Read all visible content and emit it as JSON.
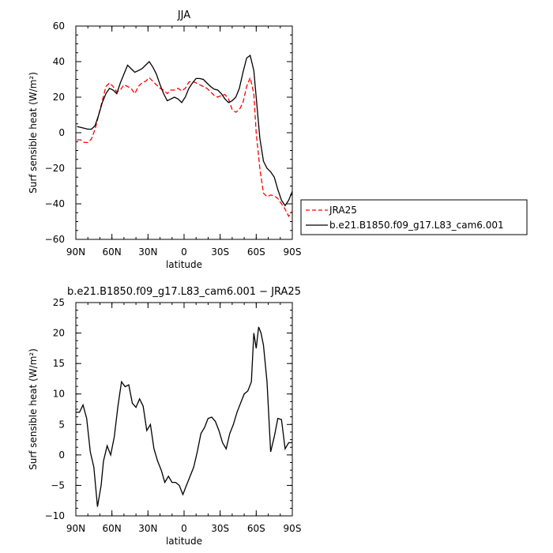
{
  "chart_data": [
    {
      "type": "line",
      "title": "JJA",
      "xlabel": "latitude",
      "ylabel": "Surf sensible heat (W/m²)",
      "xlim": [
        90,
        -90
      ],
      "ylim": [
        -60,
        60
      ],
      "x_ticks": [
        90,
        60,
        30,
        0,
        -30,
        -60,
        -90
      ],
      "x_tick_labels": [
        "90N",
        "60N",
        "30N",
        "0",
        "30S",
        "60S",
        "90S"
      ],
      "y_ticks": [
        -60,
        -40,
        -20,
        0,
        20,
        40,
        60
      ],
      "legend_position": "right",
      "series": [
        {
          "name": "JRA25",
          "color": "#ff0000",
          "dash": "dashed",
          "x": [
            89,
            86,
            83,
            80,
            77,
            74,
            71,
            68,
            65,
            62,
            59,
            56,
            53,
            50,
            47,
            44,
            41,
            38,
            35,
            32,
            29,
            26,
            23,
            20,
            17,
            14,
            11,
            8,
            5,
            2,
            -1,
            -4,
            -7,
            -10,
            -13,
            -16,
            -19,
            -22,
            -25,
            -28,
            -31,
            -34,
            -37,
            -40,
            -43,
            -46,
            -49,
            -52,
            -55,
            -58,
            -60,
            -63,
            -66,
            -69,
            -72,
            -75,
            -78,
            -81,
            -84,
            -87,
            -90
          ],
          "y": [
            -4,
            -4,
            -5.5,
            -5.5,
            -3.5,
            2,
            10,
            18,
            26,
            28,
            26,
            23,
            24,
            27,
            26,
            25,
            22,
            26,
            28,
            29,
            31,
            29,
            27,
            25,
            24,
            22,
            24,
            24,
            25,
            23.5,
            25,
            28.5,
            29,
            28,
            27,
            26,
            25,
            23,
            21,
            20,
            21,
            21.5,
            19,
            13,
            11.5,
            13,
            17,
            26,
            31,
            22,
            0,
            -20,
            -34,
            -36,
            -35,
            -35.5,
            -37,
            -40,
            -43,
            -47,
            -44
          ]
        },
        {
          "name": "b.e21.B1850.f09_g17.L83_cam6.001",
          "color": "#000000",
          "dash": "solid",
          "x": [
            89,
            86,
            83,
            80,
            77,
            74,
            71,
            68,
            65,
            62,
            59,
            56,
            53,
            50,
            47,
            44,
            41,
            38,
            35,
            32,
            29,
            26,
            23,
            20,
            17,
            14,
            11,
            8,
            5,
            2,
            -1,
            -4,
            -7,
            -10,
            -13,
            -16,
            -19,
            -22,
            -25,
            -28,
            -31,
            -34,
            -37,
            -40,
            -43,
            -46,
            -49,
            -52,
            -55,
            -58,
            -60,
            -63,
            -66,
            -69,
            -72,
            -75,
            -78,
            -81,
            -84,
            -87,
            -90
          ],
          "y": [
            3.5,
            3,
            2.5,
            2,
            2,
            4,
            10,
            17,
            22,
            25,
            24,
            22,
            28,
            33,
            38,
            36,
            34,
            35,
            36,
            38,
            40,
            37,
            33,
            27,
            22,
            18,
            19,
            20,
            19,
            17,
            20,
            25,
            28,
            30.5,
            30.5,
            30,
            28,
            26,
            24.5,
            24,
            22,
            19,
            17,
            18,
            20,
            25,
            34,
            42,
            43.5,
            35,
            20,
            -3,
            -16,
            -20,
            -22,
            -25,
            -32,
            -38,
            -41,
            -38,
            -33
          ]
        }
      ]
    },
    {
      "type": "line",
      "title": "b.e21.B1850.f09_g17.L83_cam6.001 − JRA25",
      "xlabel": "latitude",
      "ylabel": "Surf sensible heat (W/m²)",
      "xlim": [
        90,
        -90
      ],
      "ylim": [
        -10,
        25
      ],
      "x_ticks": [
        90,
        60,
        30,
        0,
        -30,
        -60,
        -90
      ],
      "x_tick_labels": [
        "90N",
        "60N",
        "30N",
        "0",
        "30S",
        "60S",
        "90S"
      ],
      "y_ticks": [
        -10,
        -5,
        0,
        5,
        10,
        15,
        20,
        25
      ],
      "series": [
        {
          "color": "#000000",
          "dash": "solid",
          "x": [
            90,
            87,
            84,
            81,
            78,
            75,
            72,
            69,
            67,
            64,
            61,
            58,
            55,
            52,
            49,
            46,
            43,
            40,
            37,
            34,
            31,
            28,
            25,
            22,
            19,
            16,
            13,
            10,
            7,
            4,
            1,
            -2,
            -5,
            -8,
            -11,
            -14,
            -17,
            -20,
            -23,
            -26,
            -29,
            -32,
            -35,
            -38,
            -41,
            -44,
            -47,
            -50,
            -53,
            -56,
            -58,
            -60,
            -62,
            -64,
            -66,
            -69,
            -72,
            -75,
            -78,
            -81,
            -84,
            -87,
            -90
          ],
          "y": [
            7,
            7,
            8.2,
            6,
            0.5,
            -2,
            -8.5,
            -5,
            -1,
            1.5,
            0,
            3,
            8,
            12,
            11.2,
            11.5,
            8.5,
            7.8,
            9.2,
            8,
            4,
            5,
            1,
            -1,
            -2.5,
            -4.5,
            -3.5,
            -4.5,
            -4.5,
            -5,
            -6.5,
            -5,
            -3.5,
            -2,
            0.5,
            3.5,
            4.5,
            6,
            6.2,
            5.5,
            4,
            2,
            1,
            3.5,
            5,
            7,
            8.5,
            10,
            10.5,
            12,
            20,
            17.5,
            21,
            20,
            18,
            12,
            0.5,
            3,
            6,
            5.8,
            1,
            2,
            2
          ]
        }
      ]
    }
  ]
}
